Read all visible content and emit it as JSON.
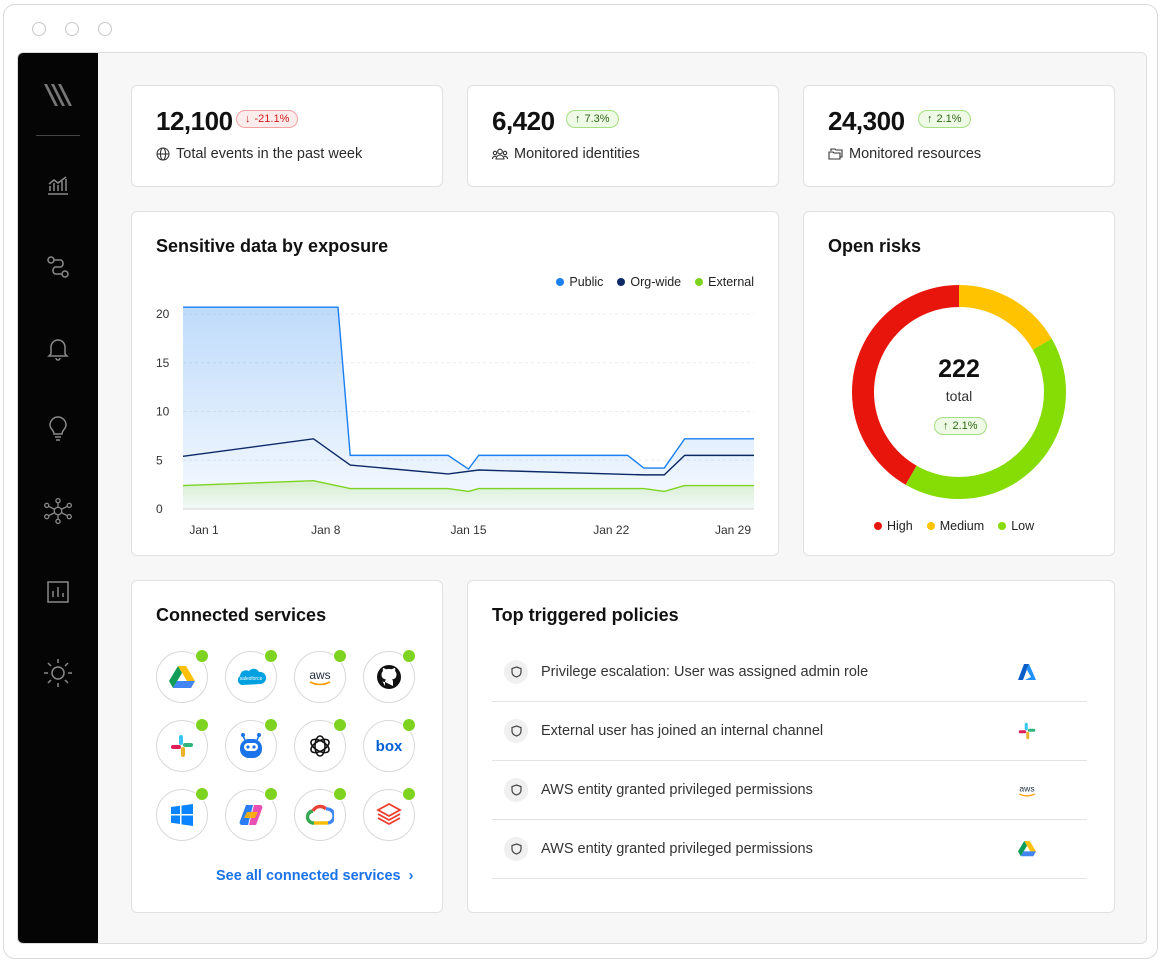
{
  "stats": [
    {
      "value": "12,100",
      "change": "-21.1%",
      "direction": "down",
      "label": "Total events in the past week",
      "icon": "globe-icon"
    },
    {
      "value": "6,420",
      "change": "7.3%",
      "direction": "up",
      "label": "Monitored identities",
      "icon": "users-icon"
    },
    {
      "value": "24,300",
      "change": "2.1%",
      "direction": "up",
      "label": "Monitored resources",
      "icon": "folders-icon"
    }
  ],
  "sidebar": {
    "items": [
      "logo",
      "analytics-icon",
      "workflow-icon",
      "bell-icon",
      "lightbulb-icon",
      "network-icon",
      "report-icon",
      "sun-icon"
    ]
  },
  "exposure": {
    "title": "Sensitive data by exposure",
    "legend": [
      "Public",
      "Org-wide",
      "External"
    ]
  },
  "risks": {
    "title": "Open risks",
    "total": "222",
    "total_label": "total",
    "change": "2.1%",
    "legend": [
      "High",
      "Medium",
      "Low"
    ]
  },
  "services": {
    "title": "Connected services",
    "items": [
      "google-drive-icon",
      "salesforce-icon",
      "aws-icon",
      "github-icon",
      "slack-icon",
      "copilot-bot-icon",
      "openai-icon",
      "box-icon",
      "windows-icon",
      "microsoft-copilot-icon",
      "google-cloud-icon",
      "databricks-icon"
    ],
    "see_all": "See all connected services"
  },
  "policies": {
    "title": "Top triggered policies",
    "rows": [
      {
        "text": "Privilege escalation: User was assigned admin role",
        "logo": "azure-icon"
      },
      {
        "text": "External user has joined an internal channel",
        "logo": "slack-icon"
      },
      {
        "text": "AWS entity granted privileged permissions",
        "logo": "aws-icon"
      },
      {
        "text": "AWS entity granted privileged permissions",
        "logo": "google-drive-icon"
      }
    ]
  },
  "colors": {
    "public": "#1a7ff0",
    "org_wide": "#0d2a66",
    "external": "#7ed321",
    "high": "#e8150c",
    "medium": "#ffc300",
    "low": "#86dc05",
    "link": "#1a73e8"
  },
  "chart_data": [
    {
      "type": "area",
      "title": "Sensitive data by exposure",
      "x_ticks": [
        "Jan 1",
        "Jan 8",
        "Jan 15",
        "Jan 22",
        "Jan 29"
      ],
      "y_ticks": [
        0,
        5,
        10,
        15,
        20
      ],
      "ylim": [
        0,
        21
      ],
      "xlim": [
        0,
        28
      ],
      "grid": true,
      "legend_position": "top-right",
      "series": [
        {
          "name": "Public",
          "points": [
            [
              0,
              20.7
            ],
            [
              7.6,
              20.7
            ],
            [
              8.2,
              5.5
            ],
            [
              13,
              5.5
            ],
            [
              14,
              4.1
            ],
            [
              14.5,
              5.5
            ],
            [
              21.8,
              5.5
            ],
            [
              22.6,
              4.2
            ],
            [
              23.6,
              4.2
            ],
            [
              24.6,
              7.2
            ],
            [
              28,
              7.2
            ]
          ]
        },
        {
          "name": "Org-wide",
          "points": [
            [
              0,
              5.4
            ],
            [
              6.4,
              7.2
            ],
            [
              8.2,
              4.5
            ],
            [
              13,
              3.6
            ],
            [
              14.5,
              4.0
            ],
            [
              22.6,
              3.5
            ],
            [
              23.6,
              3.5
            ],
            [
              24.6,
              5.5
            ],
            [
              28,
              5.5
            ]
          ]
        },
        {
          "name": "External",
          "points": [
            [
              0,
              2.4
            ],
            [
              6.4,
              2.9
            ],
            [
              8.2,
              2.1
            ],
            [
              13,
              2.1
            ],
            [
              14,
              1.8
            ],
            [
              14.5,
              2.1
            ],
            [
              22.6,
              2.1
            ],
            [
              23.6,
              1.8
            ],
            [
              24.6,
              2.4
            ],
            [
              28,
              2.4
            ]
          ]
        }
      ]
    },
    {
      "type": "pie",
      "title": "Open risks",
      "total": 222,
      "slices": [
        {
          "label": "High",
          "value": 0.417
        },
        {
          "label": "Medium",
          "value": 0.167
        },
        {
          "label": "Low",
          "value": 0.416
        }
      ]
    }
  ]
}
